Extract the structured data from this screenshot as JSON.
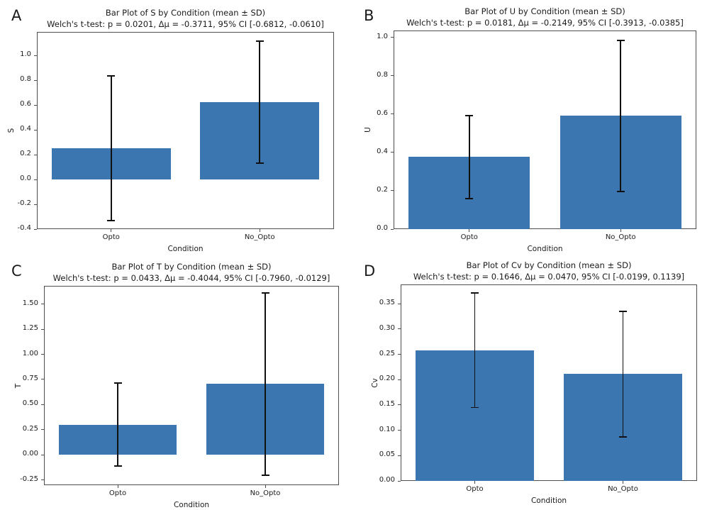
{
  "figure": {
    "colors": {
      "background": "#ffffff",
      "bar": "#3b76b0",
      "axis": "#4d4d4d",
      "error": "#111111",
      "text": "#1a1a1a"
    }
  },
  "chart_data": [
    {
      "panel_label": "A",
      "type": "bar",
      "title": "Bar Plot of S by Condition (mean ± SD)",
      "subtitle": "Welch's t-test: p = 0.0201, Δμ = -0.3711, 95% CI [-0.6812, -0.0610]",
      "xlabel": "Condition",
      "ylabel": "S",
      "categories": [
        "Opto",
        "No_Opto"
      ],
      "means": [
        0.253,
        0.624
      ],
      "sds": [
        0.584,
        0.49
      ],
      "ylim": [
        -0.4,
        1.19
      ],
      "yticks": [
        -0.4,
        -0.2,
        0.0,
        0.2,
        0.4,
        0.6,
        0.8,
        1.0
      ],
      "ytick_decimals": 1,
      "grid": false,
      "legend": "none"
    },
    {
      "panel_label": "B",
      "type": "bar",
      "title": "Bar Plot of U by Condition (mean ± SD)",
      "subtitle": "Welch's t-test: p = 0.0181, Δμ = -0.2149, 95% CI [-0.3913, -0.0385]",
      "xlabel": "Condition",
      "ylabel": "U",
      "categories": [
        "Opto",
        "No_Opto"
      ],
      "means": [
        0.376,
        0.591
      ],
      "sds": [
        0.218,
        0.395
      ],
      "ylim": [
        0,
        1.037
      ],
      "yticks": [
        0.0,
        0.2,
        0.4,
        0.6,
        0.8,
        1.0
      ],
      "ytick_decimals": 1,
      "grid": false,
      "legend": "none"
    },
    {
      "panel_label": "C",
      "type": "bar",
      "title": "Bar Plot of T by Condition (mean ± SD)",
      "subtitle": "Welch's t-test: p = 0.0433, Δμ = -0.4044, 95% CI [-0.7960, -0.0129]",
      "xlabel": "Condition",
      "ylabel": "T",
      "categories": [
        "Opto",
        "No_Opto"
      ],
      "means": [
        0.302,
        0.706
      ],
      "sds": [
        0.413,
        0.906
      ],
      "ylim": [
        -0.3,
        1.68
      ],
      "yticks": [
        -0.25,
        0.0,
        0.25,
        0.5,
        0.75,
        1.0,
        1.25,
        1.5
      ],
      "ytick_decimals": 2,
      "grid": false,
      "legend": "none"
    },
    {
      "panel_label": "D",
      "type": "bar",
      "title": "Bar Plot of Cv by Condition (mean ± SD)",
      "subtitle": "Welch's t-test: p = 0.1646, Δμ = 0.0470, 95% CI [-0.0199, 0.1139]",
      "xlabel": "Condition",
      "ylabel": "Cv",
      "categories": [
        "Opto",
        "No_Opto"
      ],
      "means": [
        0.258,
        0.211
      ],
      "sds": [
        0.113,
        0.124
      ],
      "ylim": [
        0,
        0.388
      ],
      "yticks": [
        0.0,
        0.05,
        0.1,
        0.15,
        0.2,
        0.25,
        0.3,
        0.35
      ],
      "ytick_decimals": 2,
      "grid": false,
      "legend": "none"
    }
  ]
}
